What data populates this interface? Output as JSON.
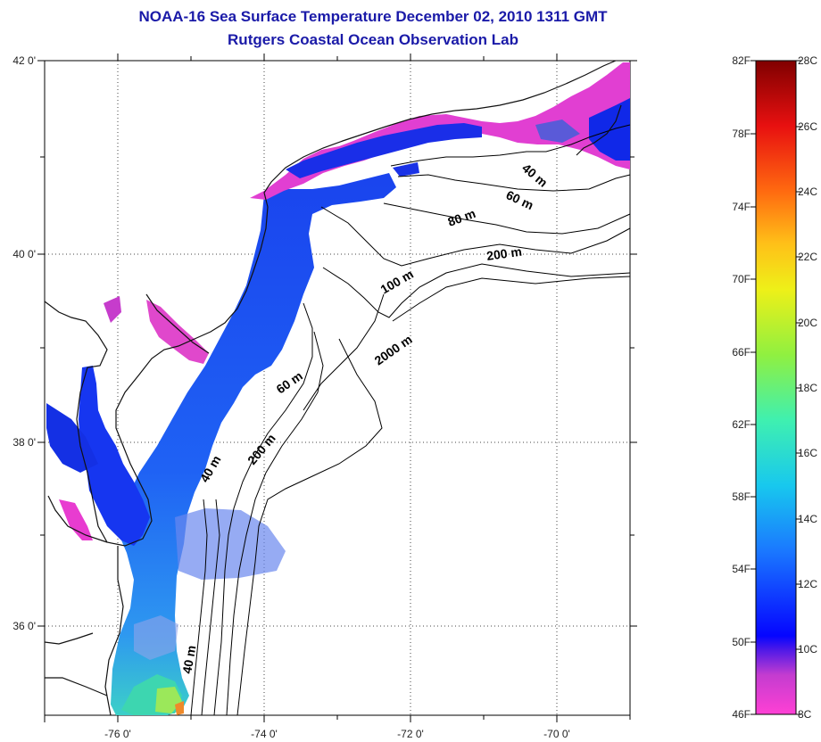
{
  "title": "NOAA-16 Sea Surface Temperature December 02, 2010 1311 GMT",
  "subtitle": "Rutgers Coastal Ocean Observation Lab",
  "map": {
    "lat_labels": [
      "42 0'",
      "40 0'",
      "38 0'",
      "36 0'"
    ],
    "lon_labels": [
      "-76 0'",
      "-74 0'",
      "-72 0'",
      "-70 0'"
    ],
    "lat_range": [
      35.0,
      42.0
    ],
    "lon_range": [
      -77.0,
      -69.0
    ],
    "gridlines": "dotted",
    "land_color": "#ffffff"
  },
  "isobath_labels": [
    "40 m",
    "60 m",
    "80 m",
    "200 m",
    "100 m",
    "2000 m",
    "60 m",
    "200 m",
    "40 m",
    "40 m"
  ],
  "colorbar": {
    "fahrenheit_labels": [
      "82F",
      "78F",
      "74F",
      "70F",
      "66F",
      "62F",
      "58F",
      "54F",
      "50F",
      "46F"
    ],
    "celsius_labels": [
      "28C",
      "26C",
      "24C",
      "22C",
      "20C",
      "18C",
      "16C",
      "14C",
      "12C",
      "10C",
      "8C"
    ],
    "range_c": [
      8,
      28
    ],
    "colors": [
      "#ff3fd2",
      "#a040c8",
      "#0a10ff",
      "#1f8df0",
      "#20e0e0",
      "#5cf060",
      "#f0f020",
      "#ff8c1a",
      "#ee1010",
      "#8a0000"
    ]
  }
}
